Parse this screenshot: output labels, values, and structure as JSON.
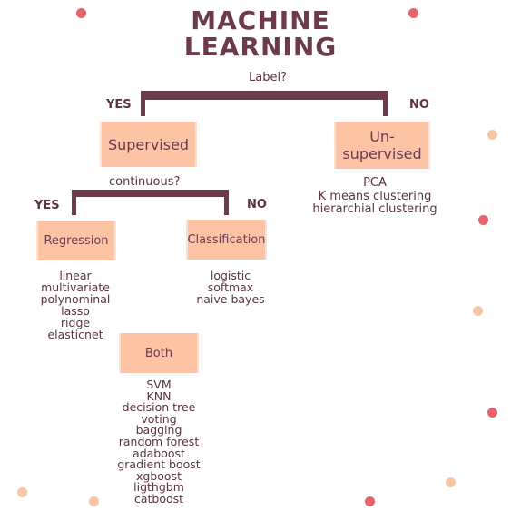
{
  "title": {
    "line1": "MACHINE",
    "line2": "LEARNING"
  },
  "root_question": "Label?",
  "root_yes": "YES",
  "root_no": "NO",
  "supervised": {
    "label": "Supervised",
    "question": "continuous?",
    "yes": "YES",
    "no": "NO"
  },
  "unsupervised": {
    "label_line1": "Un-",
    "label_line2": "supervised",
    "items": [
      "PCA",
      "K means clustering",
      "hierarchial clustering"
    ]
  },
  "regression": {
    "label": "Regression",
    "items": [
      "linear",
      "multivariate",
      "polynominal",
      "lasso",
      "ridge",
      "elasticnet"
    ]
  },
  "classification": {
    "label": "Classification",
    "items": [
      "logistic",
      "softmax",
      "naive bayes"
    ]
  },
  "both": {
    "label": "Both",
    "items": [
      "SVM",
      "KNN",
      "decision tree",
      "voting",
      "bagging",
      "random forest",
      "adaboost",
      "gradient boost",
      "xgboost",
      "ligthgbm",
      "catboost"
    ]
  },
  "colors": {
    "primary": "#6b3a4c",
    "box_fill": "#fcc4a4",
    "dot_red": "#e8636b",
    "dot_peach": "#f8c6a6"
  }
}
